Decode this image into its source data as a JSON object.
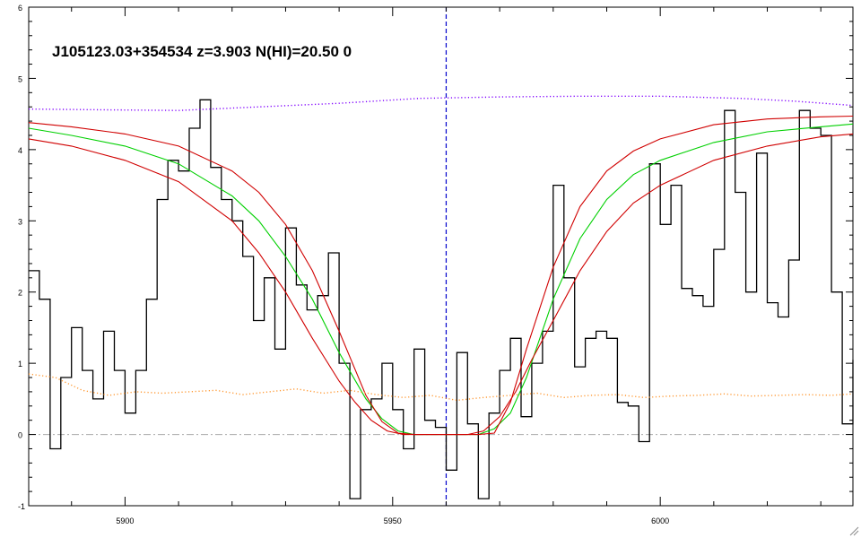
{
  "chart_data": {
    "type": "line",
    "title": "J105123.03+354534 z=3.903 N(HI)=20.50 0",
    "xlabel": "",
    "ylabel": "",
    "xlim": [
      5882,
      6036
    ],
    "ylim": [
      -1,
      6
    ],
    "xticks": [
      5900,
      5950,
      6000
    ],
    "yticks": [
      -1,
      0,
      1,
      2,
      3,
      4,
      5,
      6
    ],
    "grid": false,
    "absorber_center": 5960,
    "zero_line": 0,
    "colors": {
      "flux": "#000000",
      "model": "#00d000",
      "model_bounds": "#d00000",
      "continuum": "#8000ff",
      "error": "#ff9933",
      "center_line": "#0000cc",
      "zero_line": "#aaaaaa"
    },
    "series": [
      {
        "kind": "step",
        "style": "solid",
        "color": "#000000",
        "x": [
          5882,
          5884,
          5886,
          5888,
          5890,
          5892,
          5894,
          5896,
          5898,
          5900,
          5902,
          5904,
          5906,
          5908,
          5910,
          5912,
          5914,
          5916,
          5918,
          5920,
          5922,
          5924,
          5926,
          5928,
          5930,
          5932,
          5934,
          5936,
          5938,
          5940,
          5942,
          5944,
          5946,
          5948,
          5950,
          5952,
          5954,
          5956,
          5958,
          5960,
          5962,
          5964,
          5966,
          5968,
          5970,
          5972,
          5974,
          5976,
          5978,
          5980,
          5982,
          5984,
          5986,
          5988,
          5990,
          5992,
          5994,
          5996,
          5998,
          6000,
          6002,
          6004,
          6006,
          6008,
          6010,
          6012,
          6014,
          6016,
          6018,
          6020,
          6022,
          6024,
          6026,
          6028,
          6030,
          6032,
          6034,
          6036
        ],
        "y": [
          2.3,
          1.9,
          -0.2,
          0.8,
          1.5,
          0.9,
          0.5,
          1.45,
          0.9,
          0.3,
          0.9,
          1.9,
          3.3,
          3.85,
          3.7,
          4.3,
          4.7,
          3.75,
          3.3,
          3.0,
          2.5,
          1.6,
          2.2,
          1.2,
          2.9,
          2.1,
          1.75,
          1.95,
          2.55,
          1.0,
          -0.9,
          0.35,
          0.5,
          1.0,
          0.35,
          -0.2,
          1.2,
          0.2,
          0.1,
          -0.5,
          1.15,
          0.15,
          -0.9,
          0.3,
          0.9,
          1.35,
          0.25,
          1.0,
          1.45,
          3.5,
          2.2,
          0.95,
          1.35,
          1.45,
          1.35,
          0.45,
          0.4,
          -0.1,
          3.8,
          2.95,
          3.5,
          2.05,
          1.95,
          1.8,
          2.6,
          4.55,
          3.4,
          2.0,
          3.95,
          1.85,
          1.65,
          2.45,
          4.55,
          4.3,
          4.2,
          2.0,
          0.15,
          1.05
        ]
      },
      {
        "kind": "line",
        "style": "solid",
        "color": "#00d000",
        "x": [
          5882,
          5890,
          5900,
          5910,
          5920,
          5925,
          5930,
          5935,
          5940,
          5945,
          5948,
          5951,
          5954,
          5957,
          5963,
          5966,
          5969,
          5972,
          5975,
          5980,
          5985,
          5990,
          5995,
          6000,
          6010,
          6020,
          6030,
          6036
        ],
        "y": [
          4.3,
          4.2,
          4.05,
          3.8,
          3.35,
          3.0,
          2.5,
          1.9,
          1.15,
          0.5,
          0.22,
          0.05,
          0.0,
          0.0,
          0.0,
          0.0,
          0.08,
          0.3,
          0.8,
          1.9,
          2.75,
          3.3,
          3.65,
          3.85,
          4.1,
          4.25,
          4.32,
          4.36
        ]
      },
      {
        "kind": "line",
        "style": "solid",
        "color": "#d00000",
        "x": [
          5882,
          5890,
          5900,
          5910,
          5920,
          5925,
          5930,
          5935,
          5940,
          5945,
          5948,
          5951,
          5954,
          5957,
          5960,
          5963,
          5966,
          5969,
          5972,
          5975,
          5980,
          5985,
          5990,
          5995,
          6000,
          6010,
          6020,
          6030,
          6036
        ],
        "y": [
          4.38,
          4.32,
          4.22,
          4.05,
          3.7,
          3.4,
          2.95,
          2.3,
          1.45,
          0.55,
          0.18,
          0.02,
          0.0,
          0.0,
          0.0,
          0.0,
          0.0,
          0.02,
          0.45,
          1.2,
          2.35,
          3.2,
          3.7,
          3.98,
          4.15,
          4.35,
          4.43,
          4.46,
          4.47
        ]
      },
      {
        "kind": "line",
        "style": "solid",
        "color": "#d00000",
        "x": [
          5882,
          5890,
          5900,
          5910,
          5920,
          5925,
          5930,
          5935,
          5940,
          5943,
          5946,
          5949,
          5952,
          5955,
          5958,
          5961,
          5964,
          5967,
          5970,
          5973,
          5976,
          5980,
          5985,
          5990,
          5995,
          6000,
          6010,
          6020,
          6030,
          6036
        ],
        "y": [
          4.15,
          4.05,
          3.85,
          3.55,
          3.0,
          2.55,
          2.0,
          1.35,
          0.75,
          0.45,
          0.2,
          0.05,
          0.0,
          0.0,
          0.0,
          0.0,
          0.0,
          0.05,
          0.25,
          0.6,
          1.05,
          1.6,
          2.3,
          2.85,
          3.25,
          3.5,
          3.85,
          4.05,
          4.18,
          4.22
        ]
      },
      {
        "kind": "line",
        "style": "dotted",
        "color": "#8000ff",
        "x": [
          5882,
          5895,
          5910,
          5925,
          5940,
          5955,
          5970,
          5985,
          6000,
          6015,
          6025,
          6036
        ],
        "y": [
          4.57,
          4.56,
          4.55,
          4.6,
          4.65,
          4.72,
          4.74,
          4.75,
          4.75,
          4.72,
          4.68,
          4.62
        ]
      },
      {
        "kind": "line",
        "style": "dotted",
        "color": "#ff9933",
        "x": [
          5882,
          5887,
          5892,
          5897,
          5902,
          5907,
          5912,
          5917,
          5922,
          5927,
          5932,
          5937,
          5942,
          5947,
          5952,
          5957,
          5962,
          5967,
          5972,
          5977,
          5982,
          5987,
          5992,
          5997,
          6002,
          6007,
          6012,
          6017,
          6022,
          6027,
          6032,
          6036
        ],
        "y": [
          0.85,
          0.8,
          0.62,
          0.55,
          0.6,
          0.58,
          0.6,
          0.62,
          0.56,
          0.6,
          0.64,
          0.58,
          0.62,
          0.56,
          0.52,
          0.55,
          0.48,
          0.52,
          0.55,
          0.58,
          0.52,
          0.55,
          0.56,
          0.52,
          0.54,
          0.55,
          0.57,
          0.54,
          0.55,
          0.56,
          0.55,
          0.57
        ]
      }
    ]
  }
}
